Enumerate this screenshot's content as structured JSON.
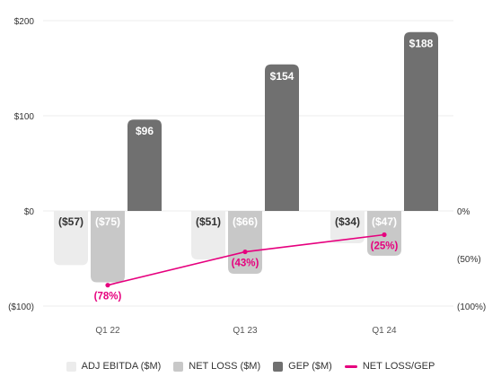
{
  "chart_data": {
    "type": "bar",
    "categories": [
      "Q1 22",
      "Q1 23",
      "Q1 24"
    ],
    "series": [
      {
        "name": "ADJ EBITDA ($M)",
        "values": [
          -57,
          -51,
          -34
        ],
        "labels": [
          "($57)",
          "($51)",
          "($34)"
        ],
        "color": "#ececec"
      },
      {
        "name": "NET LOSS ($M)",
        "values": [
          -75,
          -66,
          -47
        ],
        "labels": [
          "($75)",
          "($66)",
          "($47)"
        ],
        "color": "#c8c8c8"
      },
      {
        "name": "GEP ($M)",
        "values": [
          96,
          154,
          188
        ],
        "labels": [
          "$96",
          "$154",
          "$188"
        ],
        "color": "#707070"
      }
    ],
    "line_series": {
      "name": "NET LOSS/GEP",
      "values": [
        -78,
        -43,
        -25
      ],
      "labels": [
        "(78%)",
        "(43%)",
        "(25%)"
      ],
      "color": "#e6007e"
    },
    "y_left": {
      "ticks": [
        200,
        100,
        0,
        -100
      ],
      "tick_labels": [
        "$200",
        "$100",
        "$0",
        "($100)"
      ],
      "range": [
        -100,
        200
      ]
    },
    "y_right": {
      "ticks": [
        0,
        -50,
        -100
      ],
      "tick_labels": [
        "0%",
        "(50%)",
        "(100%)"
      ],
      "range": [
        -100,
        0
      ]
    },
    "grid": true,
    "legend_position": "bottom"
  }
}
